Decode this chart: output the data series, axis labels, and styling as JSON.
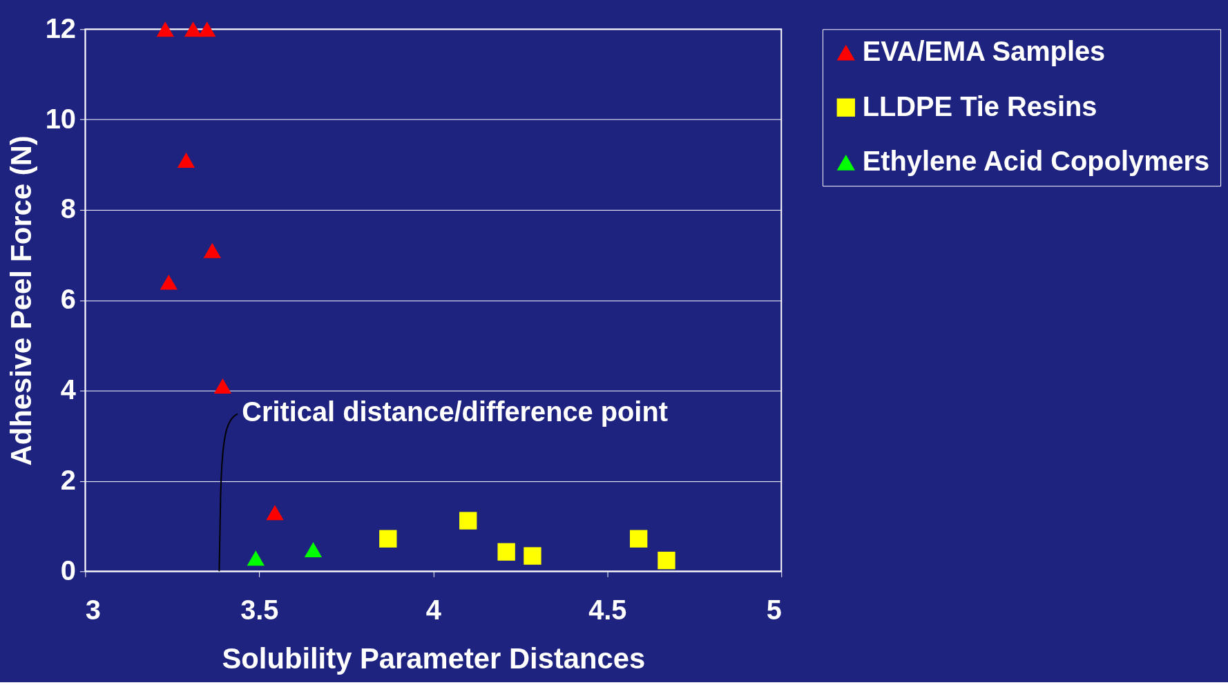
{
  "chart_data": {
    "type": "scatter",
    "xlabel": "Solubility Parameter Distances",
    "ylabel": "Adhesive Peel Force (N)",
    "xlim": [
      3,
      5
    ],
    "xticks": [
      3,
      3.5,
      4,
      4.5,
      5
    ],
    "ylim": [
      0,
      12
    ],
    "yticks": [
      0,
      2,
      4,
      6,
      8,
      10,
      12
    ],
    "grid": "y",
    "legend": "right",
    "annotations": [
      "Critical distance/difference point"
    ],
    "series": [
      {
        "name": "EVA/EMA Samples",
        "color": "#ff0000",
        "marker": "triangle",
        "x": [
          3.23,
          3.31,
          3.35,
          3.29,
          3.365,
          3.24,
          3.395,
          3.545
        ],
        "values": [
          12,
          12,
          12,
          9.1,
          7.1,
          6.4,
          4.1,
          1.3
        ]
      },
      {
        "name": "LLDPE Tie Resins",
        "color": "#ffff00",
        "marker": "square",
        "x": [
          3.87,
          4.1,
          4.21,
          4.285,
          4.59,
          4.67
        ],
        "values": [
          0.72,
          1.12,
          0.43,
          0.34,
          0.72,
          0.24
        ]
      },
      {
        "name": "Ethylene Acid Copolymers",
        "color": "#00ff00",
        "marker": "triangle",
        "x": [
          3.49,
          3.655
        ],
        "values": [
          0.29,
          0.48
        ]
      }
    ]
  }
}
